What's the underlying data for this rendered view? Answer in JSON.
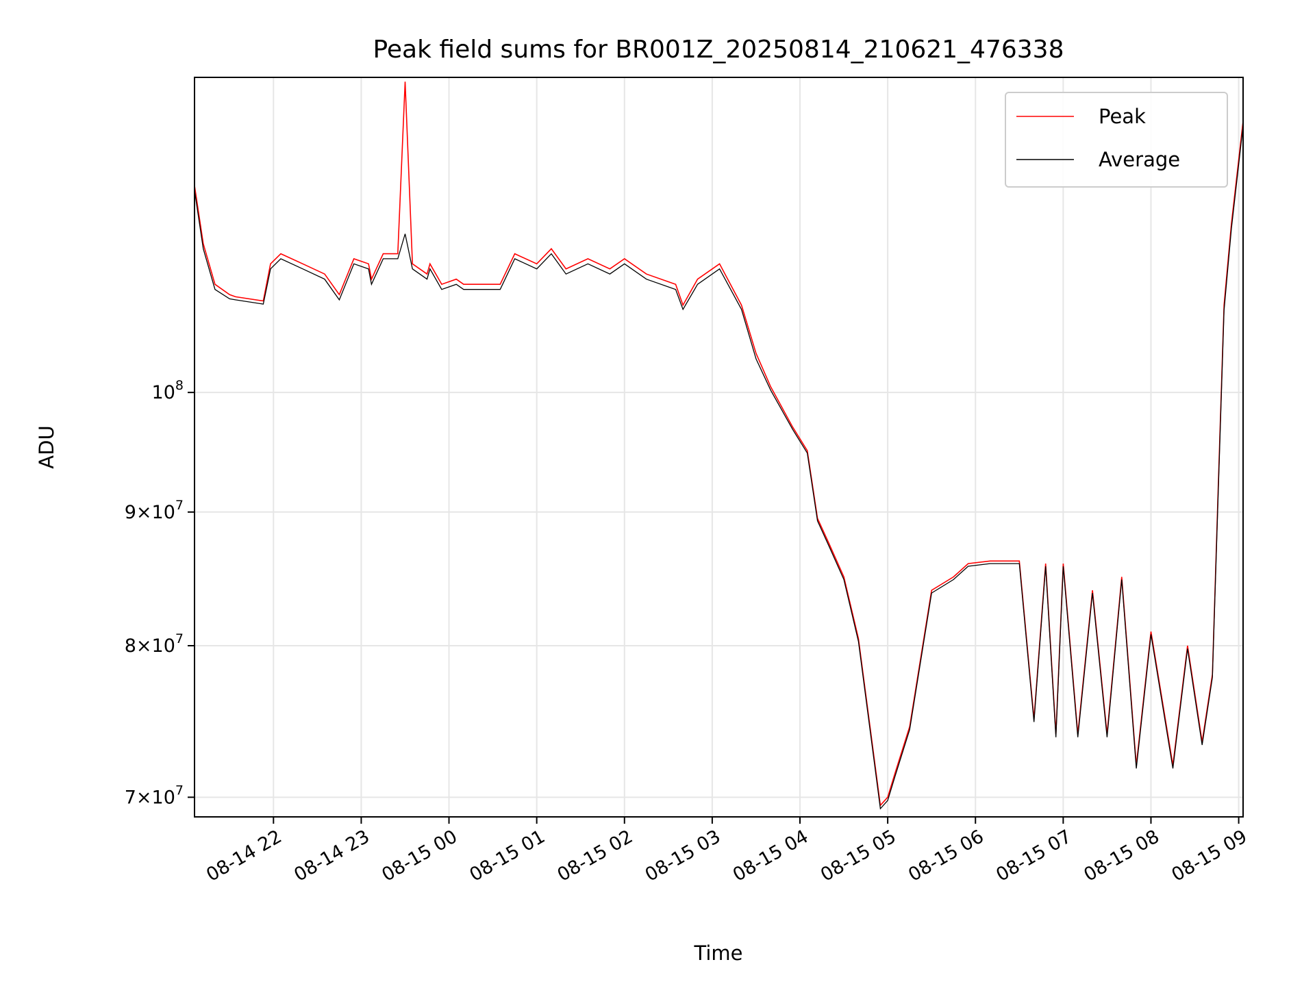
{
  "chart_data": {
    "type": "line",
    "title": "Peak field sums for BR001Z_20250814_210621_476338",
    "xlabel": "Time",
    "ylabel": "ADU",
    "yscale": "log",
    "xlim": [
      "2025-08-14 21:06",
      "2025-08-15 09:03"
    ],
    "ylim": [
      68800000,
      132000000
    ],
    "grid": true,
    "legend_position": "top-right",
    "x_tick_labels": [
      "08-14 22",
      "08-14 23",
      "08-15 00",
      "08-15 01",
      "08-15 02",
      "08-15 03",
      "08-15 04",
      "08-15 05",
      "08-15 06",
      "08-15 07",
      "08-15 08",
      "08-15 09"
    ],
    "x_ticks": [
      "2025-08-14 22:00",
      "2025-08-14 23:00",
      "2025-08-15 00:00",
      "2025-08-15 01:00",
      "2025-08-15 02:00",
      "2025-08-15 03:00",
      "2025-08-15 04:00",
      "2025-08-15 05:00",
      "2025-08-15 06:00",
      "2025-08-15 07:00",
      "2025-08-15 08:00",
      "2025-08-15 09:00"
    ],
    "y_ticks": [
      {
        "value": 70000000,
        "mantissa": "7",
        "exponent": "7"
      },
      {
        "value": 80000000,
        "mantissa": "8",
        "exponent": "7"
      },
      {
        "value": 90000000,
        "mantissa": "9",
        "exponent": "7"
      },
      {
        "value": 100000000,
        "mantissa": "",
        "exponent": "8"
      }
    ],
    "series": [
      {
        "name": "Peak",
        "color": "#ff0000",
        "x": [
          "2025-08-14 21:06",
          "2025-08-14 21:12",
          "2025-08-14 21:20",
          "2025-08-14 21:30",
          "2025-08-14 21:34",
          "2025-08-14 21:53",
          "2025-08-14 21:58",
          "2025-08-14 22:05",
          "2025-08-14 22:20",
          "2025-08-14 22:35",
          "2025-08-14 22:45",
          "2025-08-14 22:55",
          "2025-08-14 23:05",
          "2025-08-14 23:07",
          "2025-08-14 23:15",
          "2025-08-14 23:25",
          "2025-08-14 23:30",
          "2025-08-14 23:35",
          "2025-08-14 23:45",
          "2025-08-14 23:47",
          "2025-08-14 23:55",
          "2025-08-15 00:05",
          "2025-08-15 00:10",
          "2025-08-15 00:20",
          "2025-08-15 00:35",
          "2025-08-15 00:45",
          "2025-08-15 01:00",
          "2025-08-15 01:10",
          "2025-08-15 01:20",
          "2025-08-15 01:35",
          "2025-08-15 01:50",
          "2025-08-15 02:00",
          "2025-08-15 02:15",
          "2025-08-15 02:35",
          "2025-08-15 02:40",
          "2025-08-15 02:50",
          "2025-08-15 03:05",
          "2025-08-15 03:20",
          "2025-08-15 03:30",
          "2025-08-15 03:40",
          "2025-08-15 03:55",
          "2025-08-15 04:05",
          "2025-08-15 04:12",
          "2025-08-15 04:20",
          "2025-08-15 04:30",
          "2025-08-15 04:40",
          "2025-08-15 04:55",
          "2025-08-15 05:00",
          "2025-08-15 05:05",
          "2025-08-15 05:15",
          "2025-08-15 05:30",
          "2025-08-15 05:45",
          "2025-08-15 05:55",
          "2025-08-15 06:10",
          "2025-08-15 06:30",
          "2025-08-15 06:40",
          "2025-08-15 06:48",
          "2025-08-15 06:55",
          "2025-08-15 07:00",
          "2025-08-15 07:10",
          "2025-08-15 07:20",
          "2025-08-15 07:30",
          "2025-08-15 07:40",
          "2025-08-15 07:50",
          "2025-08-15 08:00",
          "2025-08-15 08:15",
          "2025-08-15 08:25",
          "2025-08-15 08:35",
          "2025-08-15 08:42",
          "2025-08-15 08:46",
          "2025-08-15 08:50",
          "2025-08-15 08:55",
          "2025-08-15 09:03"
        ],
        "y": [
          120000000,
          114000000,
          110000000,
          109000000,
          108800000,
          108400000,
          112000000,
          113000000,
          112000000,
          111000000,
          109000000,
          112500000,
          112000000,
          110500000,
          113000000,
          113000000,
          131500000,
          112000000,
          111000000,
          112000000,
          110000000,
          110500000,
          110000000,
          110000000,
          110000000,
          113000000,
          112000000,
          113500000,
          111500000,
          112500000,
          111500000,
          112500000,
          111000000,
          110000000,
          108000000,
          110500000,
          112000000,
          108000000,
          103500000,
          100500000,
          97000000,
          95000000,
          89500000,
          87500000,
          85000000,
          80500000,
          69500000,
          70000000,
          71500000,
          74500000,
          84000000,
          85000000,
          86000000,
          86200000,
          86200000,
          75000000,
          86000000,
          74000000,
          86000000,
          74000000,
          84000000,
          74000000,
          85000000,
          72000000,
          81000000,
          72000000,
          80000000,
          73500000,
          78000000,
          92000000,
          108000000,
          116000000,
          127000000
        ]
      },
      {
        "name": "Average",
        "color": "#000000",
        "x": [
          "2025-08-14 21:06",
          "2025-08-14 21:12",
          "2025-08-14 21:20",
          "2025-08-14 21:30",
          "2025-08-14 21:34",
          "2025-08-14 21:53",
          "2025-08-14 21:58",
          "2025-08-14 22:05",
          "2025-08-14 22:20",
          "2025-08-14 22:35",
          "2025-08-14 22:45",
          "2025-08-14 22:55",
          "2025-08-14 23:05",
          "2025-08-14 23:07",
          "2025-08-14 23:15",
          "2025-08-14 23:25",
          "2025-08-14 23:30",
          "2025-08-14 23:35",
          "2025-08-14 23:45",
          "2025-08-14 23:47",
          "2025-08-14 23:55",
          "2025-08-15 00:05",
          "2025-08-15 00:10",
          "2025-08-15 00:20",
          "2025-08-15 00:35",
          "2025-08-15 00:45",
          "2025-08-15 01:00",
          "2025-08-15 01:10",
          "2025-08-15 01:20",
          "2025-08-15 01:35",
          "2025-08-15 01:50",
          "2025-08-15 02:00",
          "2025-08-15 02:15",
          "2025-08-15 02:35",
          "2025-08-15 02:40",
          "2025-08-15 02:50",
          "2025-08-15 03:05",
          "2025-08-15 03:20",
          "2025-08-15 03:30",
          "2025-08-15 03:40",
          "2025-08-15 03:55",
          "2025-08-15 04:05",
          "2025-08-15 04:12",
          "2025-08-15 04:20",
          "2025-08-15 04:30",
          "2025-08-15 04:40",
          "2025-08-15 04:55",
          "2025-08-15 05:00",
          "2025-08-15 05:05",
          "2025-08-15 05:15",
          "2025-08-15 05:30",
          "2025-08-15 05:45",
          "2025-08-15 05:55",
          "2025-08-15 06:10",
          "2025-08-15 06:30",
          "2025-08-15 06:40",
          "2025-08-15 06:48",
          "2025-08-15 06:55",
          "2025-08-15 07:00",
          "2025-08-15 07:10",
          "2025-08-15 07:20",
          "2025-08-15 07:30",
          "2025-08-15 07:40",
          "2025-08-15 07:50",
          "2025-08-15 08:00",
          "2025-08-15 08:15",
          "2025-08-15 08:25",
          "2025-08-15 08:35",
          "2025-08-15 08:42",
          "2025-08-15 08:46",
          "2025-08-15 08:50",
          "2025-08-15 08:55",
          "2025-08-15 09:03"
        ],
        "y": [
          119500000,
          113500000,
          109500000,
          108600000,
          108500000,
          108100000,
          111500000,
          112500000,
          111500000,
          110500000,
          108500000,
          112000000,
          111500000,
          110000000,
          112500000,
          112500000,
          115000000,
          111500000,
          110500000,
          111500000,
          109500000,
          110000000,
          109500000,
          109500000,
          109500000,
          112500000,
          111500000,
          113000000,
          111000000,
          112000000,
          111000000,
          112000000,
          110500000,
          109500000,
          107600000,
          110000000,
          111500000,
          107600000,
          103000000,
          100200000,
          96800000,
          94800000,
          89300000,
          87300000,
          84800000,
          80300000,
          69300000,
          69800000,
          71300000,
          74300000,
          83800000,
          84800000,
          85800000,
          86000000,
          86000000,
          74800000,
          85800000,
          73800000,
          85800000,
          73800000,
          83800000,
          73800000,
          84800000,
          71800000,
          80800000,
          71800000,
          79800000,
          73300000,
          77800000,
          91500000,
          107500000,
          115500000,
          126500000
        ]
      }
    ]
  }
}
